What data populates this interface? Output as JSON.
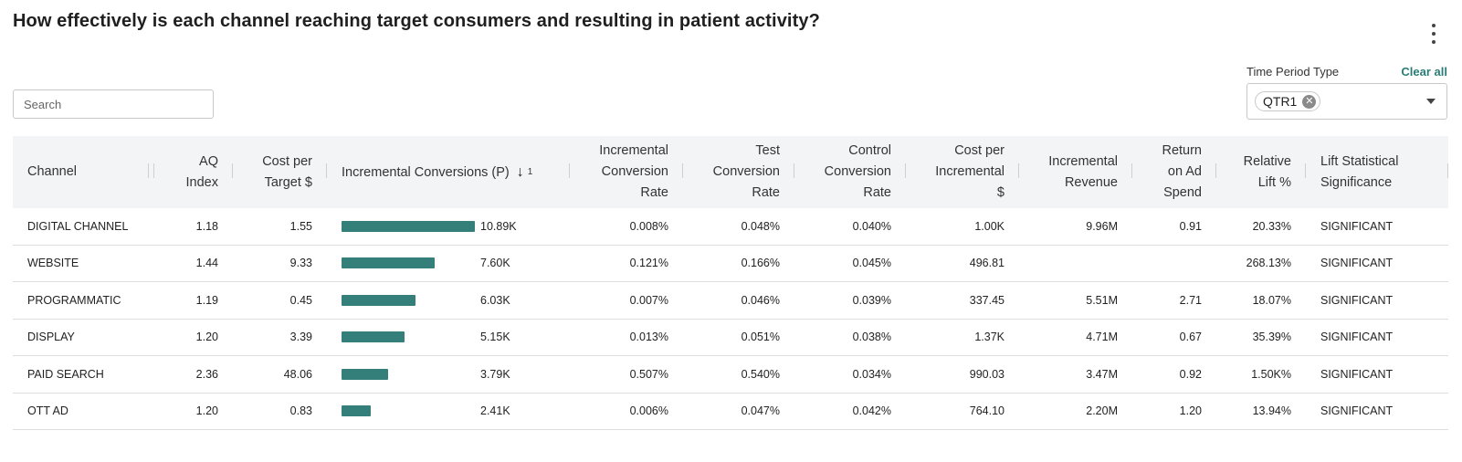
{
  "header": {
    "title": "How effectively is each channel reaching target consumers and resulting in patient activity?",
    "menu_icon": "more-vertical-icon"
  },
  "search": {
    "placeholder": "Search",
    "value": ""
  },
  "filter": {
    "label": "Time Period Type",
    "clear_label": "Clear all",
    "selected": "QTR1",
    "remove_icon": "close-icon",
    "dropdown_icon": "caret-down-icon"
  },
  "table": {
    "columns": {
      "channel": "Channel",
      "aq_index": [
        "AQ",
        "Index"
      ],
      "cost_per_target": [
        "Cost per",
        "Target $"
      ],
      "incremental_conversions": "Incremental Conversions (P)",
      "sort_index": "1",
      "sort_icon": "arrow-down-icon",
      "incremental_conversion_rate": [
        "Incremental",
        "Conversion",
        "Rate"
      ],
      "test_conversion_rate": [
        "Test",
        "Conversion",
        "Rate"
      ],
      "control_conversion_rate": [
        "Control",
        "Conversion",
        "Rate"
      ],
      "cost_per_incremental": [
        "Cost per",
        "Incremental",
        "$"
      ],
      "incremental_revenue": [
        "Incremental",
        "Revenue"
      ],
      "return_on_ad_spend": [
        "Return",
        "on Ad",
        "Spend"
      ],
      "relative_lift": [
        "Relative",
        "Lift %"
      ],
      "lift_significance": [
        "Lift Statistical",
        "Significance"
      ]
    },
    "bar_color": "#357f7a",
    "bar_max": 10890,
    "rows": [
      {
        "channel": "DIGITAL CHANNEL",
        "aq_index": "1.18",
        "cost_per_target": "1.55",
        "conversions_value": 10890,
        "conversions_label": "10.89K",
        "incremental_conversion_rate": "0.008%",
        "test_conversion_rate": "0.048%",
        "control_conversion_rate": "0.040%",
        "cost_per_incremental": "1.00K",
        "incremental_revenue": "9.96M",
        "return_on_ad_spend": "0.91",
        "relative_lift": "20.33%",
        "lift_significance": "SIGNIFICANT"
      },
      {
        "channel": "WEBSITE",
        "aq_index": "1.44",
        "cost_per_target": "9.33",
        "conversions_value": 7600,
        "conversions_label": "7.60K",
        "incremental_conversion_rate": "0.121%",
        "test_conversion_rate": "0.166%",
        "control_conversion_rate": "0.045%",
        "cost_per_incremental": "496.81",
        "incremental_revenue": "",
        "return_on_ad_spend": "",
        "relative_lift": "268.13%",
        "lift_significance": "SIGNIFICANT"
      },
      {
        "channel": "PROGRAMMATIC",
        "aq_index": "1.19",
        "cost_per_target": "0.45",
        "conversions_value": 6030,
        "conversions_label": "6.03K",
        "incremental_conversion_rate": "0.007%",
        "test_conversion_rate": "0.046%",
        "control_conversion_rate": "0.039%",
        "cost_per_incremental": "337.45",
        "incremental_revenue": "5.51M",
        "return_on_ad_spend": "2.71",
        "relative_lift": "18.07%",
        "lift_significance": "SIGNIFICANT"
      },
      {
        "channel": "DISPLAY",
        "aq_index": "1.20",
        "cost_per_target": "3.39",
        "conversions_value": 5150,
        "conversions_label": "5.15K",
        "incremental_conversion_rate": "0.013%",
        "test_conversion_rate": "0.051%",
        "control_conversion_rate": "0.038%",
        "cost_per_incremental": "1.37K",
        "incremental_revenue": "4.71M",
        "return_on_ad_spend": "0.67",
        "relative_lift": "35.39%",
        "lift_significance": "SIGNIFICANT"
      },
      {
        "channel": "PAID SEARCH",
        "aq_index": "2.36",
        "cost_per_target": "48.06",
        "conversions_value": 3790,
        "conversions_label": "3.79K",
        "incremental_conversion_rate": "0.507%",
        "test_conversion_rate": "0.540%",
        "control_conversion_rate": "0.034%",
        "cost_per_incremental": "990.03",
        "incremental_revenue": "3.47M",
        "return_on_ad_spend": "0.92",
        "relative_lift": "1.50K%",
        "lift_significance": "SIGNIFICANT"
      },
      {
        "channel": "OTT AD",
        "aq_index": "1.20",
        "cost_per_target": "0.83",
        "conversions_value": 2410,
        "conversions_label": "2.41K",
        "incremental_conversion_rate": "0.006%",
        "test_conversion_rate": "0.047%",
        "control_conversion_rate": "0.042%",
        "cost_per_incremental": "764.10",
        "incremental_revenue": "2.20M",
        "return_on_ad_spend": "1.20",
        "relative_lift": "13.94%",
        "lift_significance": "SIGNIFICANT"
      }
    ]
  }
}
